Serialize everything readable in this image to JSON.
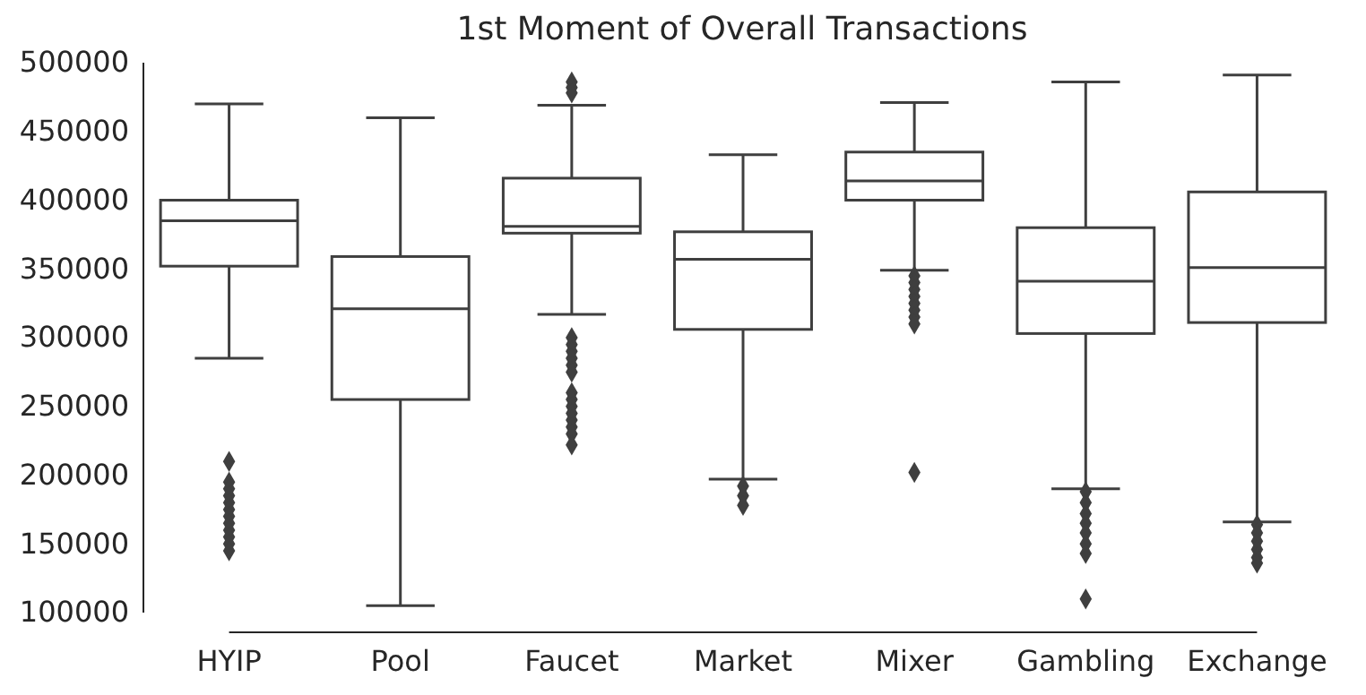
{
  "chart_data": {
    "type": "box",
    "title": "1st Moment of Overall Transactions",
    "categories": [
      "HYIP",
      "Pool",
      "Faucet",
      "Market",
      "Mixer",
      "Gambling",
      "Exchange"
    ],
    "ylim": [
      100000,
      500000
    ],
    "yticks": [
      100000,
      150000,
      200000,
      250000,
      300000,
      350000,
      400000,
      450000,
      500000
    ],
    "grid": false,
    "color": "#3f3f3f",
    "marker": "diamond",
    "boxes": [
      {
        "low": 285000,
        "q1": 352000,
        "median": 385000,
        "q3": 400000,
        "high": 470000,
        "outliers": [
          210000,
          195000,
          190000,
          185000,
          180000,
          175000,
          170000,
          165000,
          160000,
          155000,
          150000,
          145000
        ]
      },
      {
        "low": 105000,
        "q1": 255000,
        "median": 321000,
        "q3": 359000,
        "high": 460000
      },
      {
        "low": 317000,
        "q1": 376000,
        "median": 381000,
        "q3": 416000,
        "high": 469000,
        "outliers": [
          486000,
          482000,
          478000,
          300000,
          295000,
          290000,
          285000,
          280000,
          275000,
          260000,
          255000,
          250000,
          245000,
          240000,
          235000,
          230000,
          222000
        ]
      },
      {
        "low": 197000,
        "q1": 306000,
        "median": 357000,
        "q3": 377000,
        "high": 433000,
        "outliers": [
          192000,
          185000,
          178000
        ]
      },
      {
        "low": 349000,
        "q1": 400000,
        "median": 414000,
        "q3": 435000,
        "high": 471000,
        "outliers": [
          345000,
          340000,
          335000,
          330000,
          325000,
          320000,
          315000,
          310000,
          202000
        ]
      },
      {
        "low": 190000,
        "q1": 303000,
        "median": 341000,
        "q3": 380000,
        "high": 486000,
        "outliers": [
          188000,
          180000,
          172000,
          165000,
          158000,
          150000,
          143000,
          110000
        ]
      },
      {
        "low": 166000,
        "q1": 311000,
        "median": 351000,
        "q3": 406000,
        "high": 491000,
        "outliers": [
          164000,
          158000,
          152000,
          146000,
          140000,
          136000
        ]
      }
    ]
  }
}
